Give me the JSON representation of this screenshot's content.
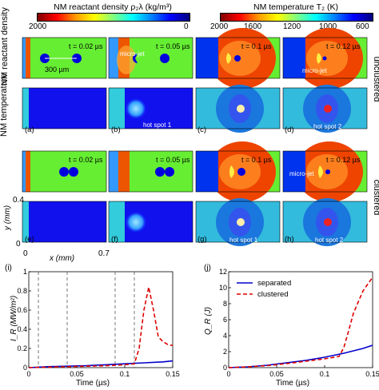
{
  "colorbar_density": {
    "title": "NM reactant density ρ₂λ (kg/m³)",
    "tick_left": "2000",
    "tick_right": "0",
    "gradient": [
      "#7f0000",
      "#ff0000",
      "#ff9900",
      "#ffff00",
      "#7fff7f",
      "#00ffff",
      "#0080ff",
      "#0000ff",
      "#00007f"
    ]
  },
  "colorbar_temp": {
    "title": "NM temperature T₂ (K)",
    "ticks": [
      "2000",
      "1600",
      "1200",
      "1000",
      "600"
    ],
    "gradient": [
      "#7f0000",
      "#ff0000",
      "#ff9900",
      "#ffff00",
      "#7fff7f",
      "#00ffff",
      "#0080ff",
      "#0000ff",
      "#00007f"
    ]
  },
  "row_labels": {
    "density": "NM reactant density",
    "temperature": "NM temperature",
    "unclustered": "unclustered",
    "clustered": "clustered"
  },
  "times": [
    "t = 0.02 µs",
    "t = 0.05 µs",
    "t = 0.1 µs",
    "t = 0.12 µs"
  ],
  "panel_letters": [
    "(a)",
    "(b)",
    "(c)",
    "(d)",
    "(e)",
    "(f)",
    "(g)",
    "(h)"
  ],
  "annotations": {
    "scale": "300 µm",
    "microjet": "micro-jet",
    "hotspot1": "hot spot 1",
    "hotspot2": "hot spot 2"
  },
  "axes_map": {
    "ylabel": "y (mm)",
    "xlabel": "x (mm)",
    "y_ticks": [
      "0.4",
      "0"
    ],
    "x_ticks": [
      "0",
      "0.7"
    ]
  },
  "plot_i": {
    "label": "(i)",
    "ylabel": "I_R (MW/m²)",
    "xlabel": "Time (µs)",
    "x_ticks": [
      "0",
      "0.05",
      "0.1",
      "0.15"
    ],
    "y_ticks": [
      "0",
      "0.2",
      "0.4",
      "0.6",
      "0.8",
      "1"
    ]
  },
  "plot_j": {
    "label": "(j)",
    "ylabel": "Q_R (J)",
    "xlabel": "Time (µs)",
    "x_ticks": [
      "0",
      "0.05",
      "0.1",
      "0.15"
    ],
    "y_ticks": [
      "0",
      "2",
      "4",
      "6",
      "8",
      "10",
      "12"
    ],
    "legend": [
      "separated",
      "clustered"
    ]
  },
  "chart_data": [
    {
      "type": "line",
      "title": "",
      "xlabel": "Time (µs)",
      "ylabel": "I_R (MW/m²)",
      "xlim": [
        0,
        0.15
      ],
      "ylim": [
        0,
        1
      ],
      "vlines": [
        0.01,
        0.04,
        0.09,
        0.11
      ],
      "series": [
        {
          "color": "#0000cc",
          "dash": "solid",
          "x": [
            0,
            0.02,
            0.04,
            0.06,
            0.08,
            0.1,
            0.12,
            0.14,
            0.15
          ],
          "y": [
            0.0,
            0.01,
            0.015,
            0.02,
            0.03,
            0.04,
            0.05,
            0.06,
            0.07
          ]
        },
        {
          "color": "#dd0000",
          "dash": "dashed",
          "x": [
            0,
            0.02,
            0.04,
            0.06,
            0.08,
            0.1,
            0.11,
            0.115,
            0.12,
            0.125,
            0.13,
            0.135,
            0.14,
            0.145,
            0.15
          ],
          "y": [
            0.0,
            0.005,
            0.01,
            0.015,
            0.02,
            0.03,
            0.04,
            0.2,
            0.6,
            0.84,
            0.6,
            0.32,
            0.27,
            0.24,
            0.23
          ]
        }
      ]
    },
    {
      "type": "line",
      "title": "",
      "xlabel": "Time (µs)",
      "ylabel": "Q_R (J)",
      "xlim": [
        0,
        0.15
      ],
      "ylim": [
        0,
        12
      ],
      "legend_position": "top-left",
      "series": [
        {
          "name": "separated",
          "color": "#0000cc",
          "dash": "solid",
          "x": [
            0,
            0.02,
            0.04,
            0.06,
            0.08,
            0.1,
            0.12,
            0.14,
            0.15
          ],
          "y": [
            0,
            0.1,
            0.3,
            0.6,
            0.9,
            1.3,
            1.8,
            2.4,
            2.8
          ]
        },
        {
          "name": "clustered",
          "color": "#dd0000",
          "dash": "dashed",
          "x": [
            0,
            0.02,
            0.04,
            0.06,
            0.08,
            0.1,
            0.115,
            0.12,
            0.125,
            0.13,
            0.14,
            0.15
          ],
          "y": [
            0,
            0.1,
            0.25,
            0.5,
            0.8,
            1.1,
            1.4,
            2.5,
            4.6,
            6.8,
            9.6,
            11.3
          ]
        }
      ]
    }
  ]
}
